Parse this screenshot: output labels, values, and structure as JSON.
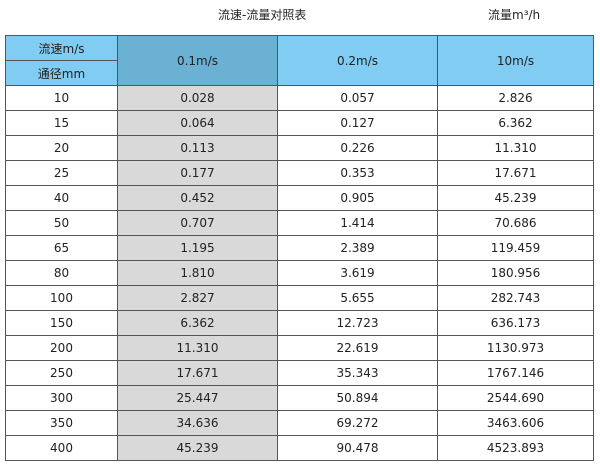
{
  "title": "流速-流量对照表",
  "unit": "流量m³/h",
  "header": {
    "velocity_label": "流速m/s",
    "diameter_label": "通径mm",
    "columns": [
      "0.1m/s",
      "0.2m/s",
      "10m/s"
    ]
  },
  "rows": [
    [
      "10",
      "0.028",
      "0.057",
      "2.826"
    ],
    [
      "15",
      "0.064",
      "0.127",
      "6.362"
    ],
    [
      "20",
      "0.113",
      "0.226",
      "11.310"
    ],
    [
      "25",
      "0.177",
      "0.353",
      "17.671"
    ],
    [
      "40",
      "0.452",
      "0.905",
      "45.239"
    ],
    [
      "50",
      "0.707",
      "1.414",
      "70.686"
    ],
    [
      "65",
      "1.195",
      "2.389",
      "119.459"
    ],
    [
      "80",
      "1.810",
      "3.619",
      "180.956"
    ],
    [
      "100",
      "2.827",
      "5.655",
      "282.743"
    ],
    [
      "150",
      "6.362",
      "12.723",
      "636.173"
    ],
    [
      "200",
      "11.310",
      "22.619",
      "1130.973"
    ],
    [
      "250",
      "17.671",
      "35.343",
      "1767.146"
    ],
    [
      "300",
      "25.447",
      "50.894",
      "2544.690"
    ],
    [
      "350",
      "34.636",
      "69.272",
      "3463.606"
    ],
    [
      "400",
      "45.239",
      "90.478",
      "4523.893"
    ]
  ]
}
